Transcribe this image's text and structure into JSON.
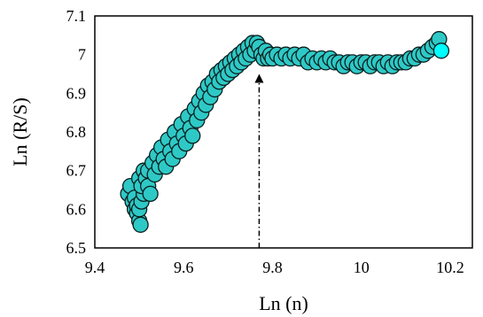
{
  "chart_data": {
    "type": "scatter",
    "xlabel": "Ln (n)",
    "ylabel": "Ln (R/S)",
    "xlim": [
      9.4,
      10.25
    ],
    "ylim": [
      6.5,
      7.1
    ],
    "xticks": [
      "9.4",
      "9.6",
      "9.8",
      "10",
      "10.2"
    ],
    "yticks": [
      "6.5",
      "6.6",
      "6.7",
      "6.8",
      "6.9",
      "7",
      "7.1"
    ],
    "grid": false,
    "legend": "none",
    "annotation": {
      "type": "dash-dot arrow",
      "x": 9.77,
      "from_y": 6.5,
      "to_y": 6.95
    },
    "series": [
      {
        "marker_color": "#2ec9c6",
        "marker_edge": "#0b1f1f",
        "highlight_color": "#00ffff",
        "points": [
          [
            9.475,
            6.64
          ],
          [
            9.48,
            6.66
          ],
          [
            9.485,
            6.62
          ],
          [
            9.49,
            6.6
          ],
          [
            9.495,
            6.59
          ],
          [
            9.5,
            6.57
          ],
          [
            9.503,
            6.56
          ],
          [
            9.49,
            6.63
          ],
          [
            9.495,
            6.61
          ],
          [
            9.5,
            6.6
          ],
          [
            9.505,
            6.62
          ],
          [
            9.51,
            6.64
          ],
          [
            9.5,
            6.68
          ],
          [
            9.505,
            6.66
          ],
          [
            9.51,
            6.7
          ],
          [
            9.515,
            6.68
          ],
          [
            9.52,
            6.66
          ],
          [
            9.525,
            6.64
          ],
          [
            9.52,
            6.7
          ],
          [
            9.53,
            6.72
          ],
          [
            9.535,
            6.69
          ],
          [
            9.54,
            6.74
          ],
          [
            9.545,
            6.71
          ],
          [
            9.55,
            6.76
          ],
          [
            9.555,
            6.73
          ],
          [
            9.56,
            6.71
          ],
          [
            9.565,
            6.78
          ],
          [
            9.57,
            6.75
          ],
          [
            9.575,
            6.73
          ],
          [
            9.58,
            6.8
          ],
          [
            9.585,
            6.77
          ],
          [
            9.59,
            6.75
          ],
          [
            9.595,
            6.82
          ],
          [
            9.6,
            6.79
          ],
          [
            9.605,
            6.77
          ],
          [
            9.61,
            6.84
          ],
          [
            9.615,
            6.81
          ],
          [
            9.62,
            6.79
          ],
          [
            9.625,
            6.86
          ],
          [
            9.63,
            6.83
          ],
          [
            9.635,
            6.88
          ],
          [
            9.64,
            6.85
          ],
          [
            9.645,
            6.9
          ],
          [
            9.65,
            6.87
          ],
          [
            9.655,
            6.92
          ],
          [
            9.66,
            6.89
          ],
          [
            9.665,
            6.93
          ],
          [
            9.67,
            6.91
          ],
          [
            9.675,
            6.95
          ],
          [
            9.68,
            6.93
          ],
          [
            9.685,
            6.96
          ],
          [
            9.69,
            6.94
          ],
          [
            9.695,
            6.97
          ],
          [
            9.7,
            6.95
          ],
          [
            9.705,
            6.98
          ],
          [
            9.71,
            6.96
          ],
          [
            9.715,
            6.99
          ],
          [
            9.72,
            6.97
          ],
          [
            9.725,
            7.0
          ],
          [
            9.73,
            6.98
          ],
          [
            9.735,
            7.01
          ],
          [
            9.74,
            6.99
          ],
          [
            9.745,
            7.02
          ],
          [
            9.75,
            7.0
          ],
          [
            9.755,
            7.03
          ],
          [
            9.76,
            7.01
          ],
          [
            9.765,
            7.03
          ],
          [
            9.77,
            7.02
          ],
          [
            9.775,
            7.0
          ],
          [
            9.78,
            6.99
          ],
          [
            9.785,
            7.01
          ],
          [
            9.79,
            6.99
          ],
          [
            9.795,
            7.0
          ],
          [
            9.8,
            6.99
          ],
          [
            9.81,
            7.0
          ],
          [
            9.82,
            6.99
          ],
          [
            9.83,
            7.0
          ],
          [
            9.84,
            6.99
          ],
          [
            9.85,
            7.0
          ],
          [
            9.86,
            6.99
          ],
          [
            9.87,
            7.0
          ],
          [
            9.88,
            6.98
          ],
          [
            9.89,
            6.99
          ],
          [
            9.9,
            6.98
          ],
          [
            9.91,
            6.99
          ],
          [
            9.92,
            6.98
          ],
          [
            9.93,
            6.99
          ],
          [
            9.94,
            6.98
          ],
          [
            9.95,
            6.98
          ],
          [
            9.96,
            6.97
          ],
          [
            9.97,
            6.98
          ],
          [
            9.98,
            6.98
          ],
          [
            9.99,
            6.97
          ],
          [
            10.0,
            6.98
          ],
          [
            10.01,
            6.98
          ],
          [
            10.02,
            6.97
          ],
          [
            10.03,
            6.98
          ],
          [
            10.04,
            6.98
          ],
          [
            10.05,
            6.97
          ],
          [
            10.06,
            6.98
          ],
          [
            10.07,
            6.97
          ],
          [
            10.08,
            6.98
          ],
          [
            10.09,
            6.98
          ],
          [
            10.1,
            6.98
          ],
          [
            10.11,
            6.99
          ],
          [
            10.12,
            6.99
          ],
          [
            10.13,
            7.0
          ],
          [
            10.14,
            7.0
          ],
          [
            10.15,
            7.01
          ],
          [
            10.16,
            7.02
          ],
          [
            10.17,
            7.03
          ],
          [
            10.175,
            7.04
          ],
          [
            10.18,
            7.01
          ]
        ]
      }
    ]
  }
}
